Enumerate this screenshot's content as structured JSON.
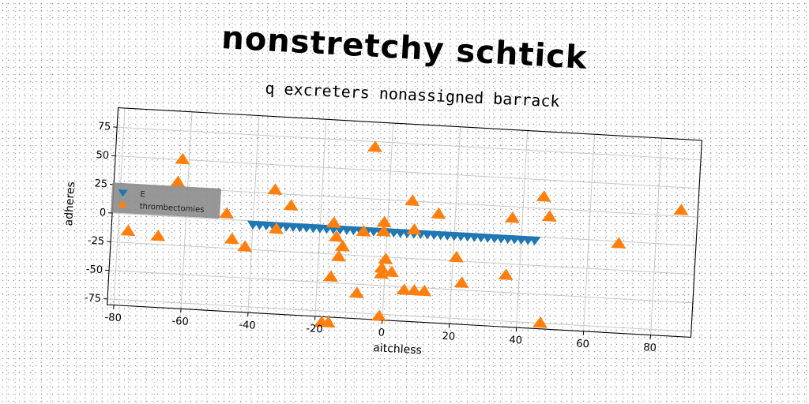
{
  "chart_data": {
    "type": "scatter",
    "title": "nonstretchy schtick",
    "subtitle": "q excreters nonassigned barrack",
    "xlabel": "aitchless",
    "ylabel": "adheres",
    "xlim": [
      -82,
      92
    ],
    "ylim": [
      -80,
      92
    ],
    "xticks": [
      -80,
      -60,
      -40,
      -20,
      0,
      20,
      40,
      60,
      80
    ],
    "yticks": [
      -75,
      -50,
      -25,
      0,
      25,
      50,
      75
    ],
    "grid": true,
    "legend_position": "center-left",
    "series": [
      {
        "name": "E",
        "marker": "triangle-down",
        "color": "#1f77b4",
        "x": [
          -40,
          -38,
          -36,
          -34,
          -32,
          -30,
          -28,
          -26,
          -24,
          -22,
          -20,
          -18,
          -16,
          -14,
          -12,
          -10,
          -8,
          -6,
          -4,
          -2,
          0,
          2,
          4,
          6,
          8,
          10,
          12,
          14,
          16,
          18,
          20,
          22,
          24,
          26,
          28,
          30,
          32,
          34,
          36,
          38,
          40,
          42,
          44
        ],
        "y": [
          -3,
          -3,
          -3,
          -3,
          -3,
          -3,
          -3,
          -3,
          -3,
          -3,
          -3,
          -3,
          -3,
          -3,
          -3,
          -3,
          -3,
          -3,
          -3,
          -3,
          -3,
          -3,
          -3,
          -3,
          -3,
          -3,
          -3,
          -3,
          -3,
          -3,
          -3,
          -3,
          -3,
          -3,
          -3,
          -3,
          -3,
          -3,
          -3,
          -3,
          -3,
          -3,
          -3
        ]
      },
      {
        "name": "thrombectomies",
        "marker": "triangle-up",
        "color": "#ff7f0e",
        "x": [
          -5,
          -62,
          -63,
          -48,
          -34,
          -29,
          -77,
          -68,
          -42,
          -46,
          -33,
          -16,
          -7,
          -15,
          -13,
          -14,
          -16,
          -1,
          0,
          -1,
          -1,
          2,
          -18,
          -8,
          -16,
          -1,
          7,
          15,
          37,
          46,
          48,
          87,
          69,
          21,
          23,
          36,
          47,
          6,
          9,
          12,
          8,
          -1
        ],
        "y": [
          70,
          50,
          30,
          5,
          28,
          15,
          -15,
          -18,
          -23,
          -17,
          -6,
          2,
          -4,
          -10,
          -18,
          -27,
          -45,
          -35,
          -27,
          -40,
          -77,
          -38,
          -85,
          -58,
          -85,
          -3,
          25,
          15,
          15,
          35,
          18,
          30,
          -2,
          -22,
          -44,
          -35,
          -75,
          -53,
          -53,
          -53,
          0,
          5
        ]
      }
    ]
  }
}
